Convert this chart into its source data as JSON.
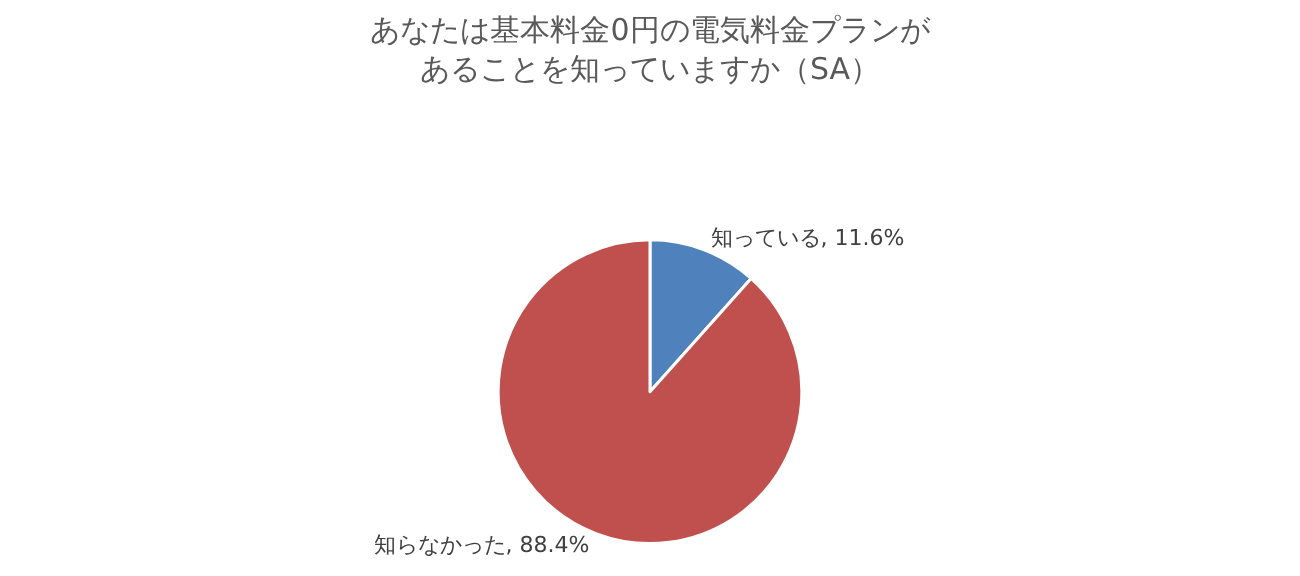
{
  "chart_data": {
    "type": "pie",
    "title": "あなたは基本料金0円の電気料金プランがあることを知っていますか（SA）",
    "categories": [
      "知っている",
      "知らなかった"
    ],
    "values": [
      11.6,
      88.4
    ],
    "colors": [
      "#4f81bd",
      "#c0504d"
    ],
    "value_labels": [
      "11.6%",
      "88.4%"
    ],
    "legend": false
  }
}
